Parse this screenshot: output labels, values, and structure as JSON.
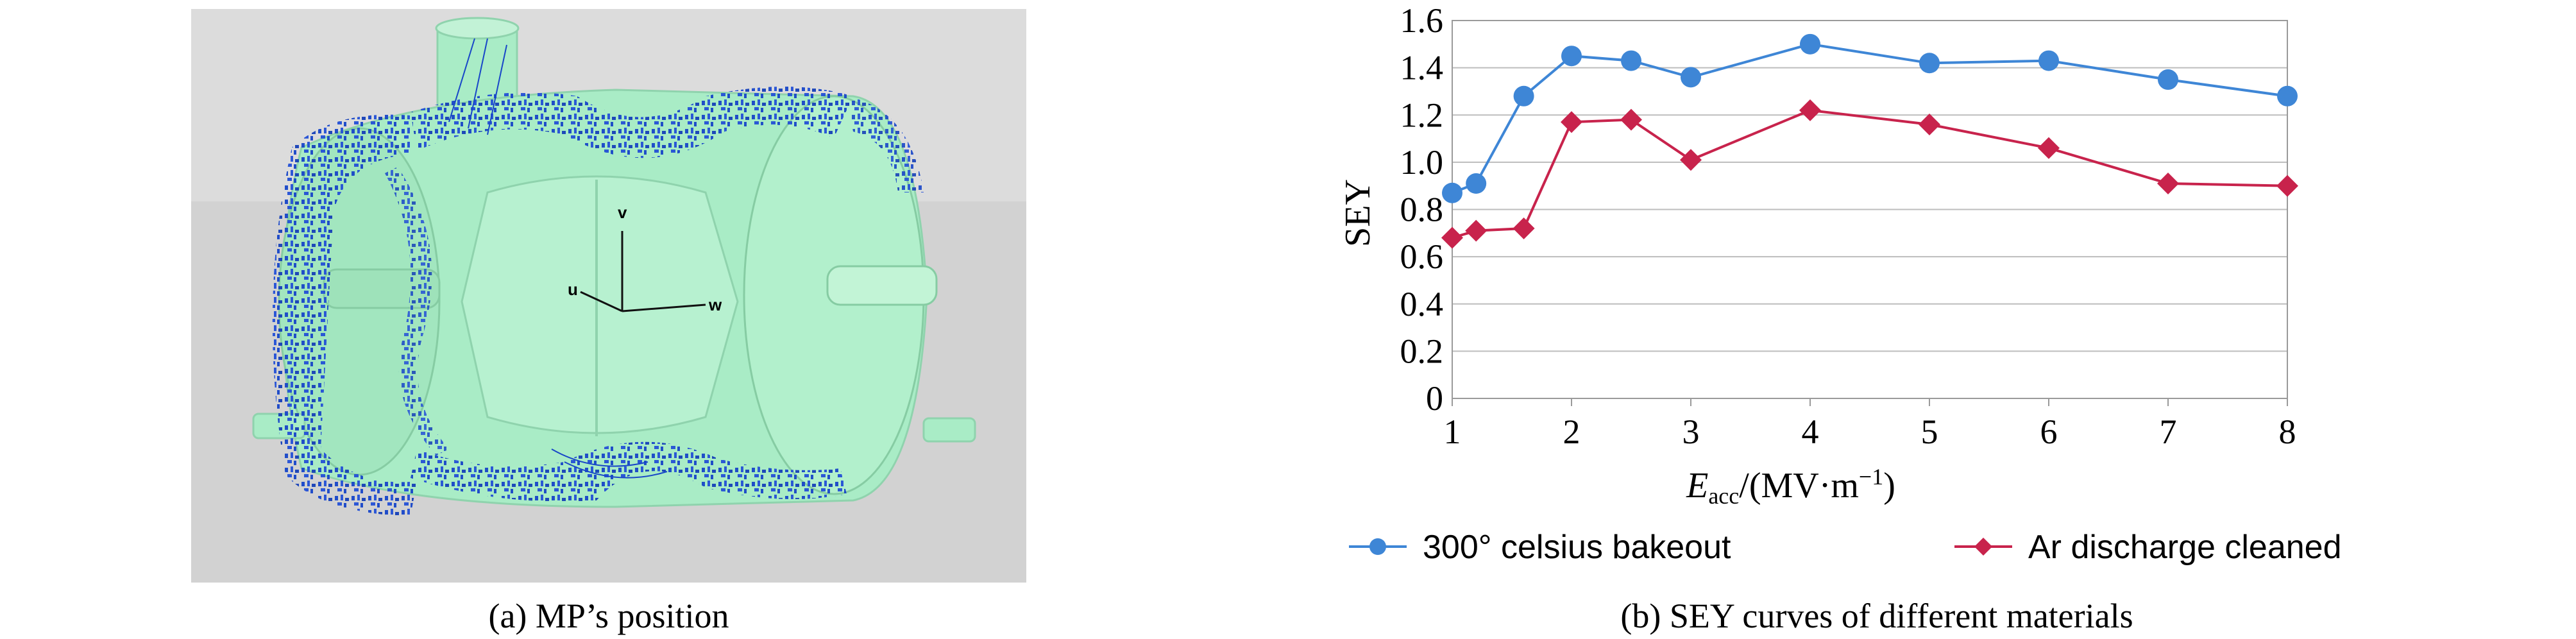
{
  "panel_a": {
    "caption": "(a) MP’s position",
    "axes_labels": {
      "v": "v",
      "u": "u",
      "w": "w"
    },
    "colors": {
      "background": "#d2d2d2",
      "cavity": "#a9ecc6",
      "particles": "#1846c8"
    }
  },
  "panel_b": {
    "caption": "(b) SEY curves of different materials"
  },
  "chart_data": {
    "type": "line",
    "title": "",
    "ylabel": "SEY",
    "xlabel_main": "E",
    "xlabel_sub": "acc",
    "xlabel_unit": "/(MV·m",
    "xlabel_exp": "−1",
    "xlabel_close": ")",
    "xlim": [
      1,
      8
    ],
    "ylim": [
      0,
      1.6
    ],
    "xticks": [
      "1",
      "2",
      "3",
      "4",
      "5",
      "6",
      "7",
      "8"
    ],
    "yticks": [
      "0",
      "0.2",
      "0.4",
      "0.6",
      "0.8",
      "1.0",
      "1.2",
      "1.4",
      "1.6"
    ],
    "grid": "horizontal",
    "legend_position": "bottom",
    "series": [
      {
        "name": "300° celsius bakeout",
        "color": "#3e86d6",
        "marker": "circle",
        "x": [
          1,
          1.2,
          1.6,
          2,
          2.5,
          3,
          4,
          5,
          6,
          7,
          8
        ],
        "y": [
          0.87,
          0.91,
          1.28,
          1.45,
          1.43,
          1.36,
          1.5,
          1.42,
          1.43,
          1.35,
          1.28
        ]
      },
      {
        "name": "Ar discharge cleaned",
        "color": "#c8234c",
        "marker": "diamond",
        "x": [
          1,
          1.2,
          1.6,
          2,
          2.5,
          3,
          4,
          5,
          6,
          7,
          8
        ],
        "y": [
          0.68,
          0.71,
          0.72,
          1.17,
          1.18,
          1.01,
          1.22,
          1.16,
          1.06,
          0.91,
          0.9
        ]
      }
    ]
  }
}
